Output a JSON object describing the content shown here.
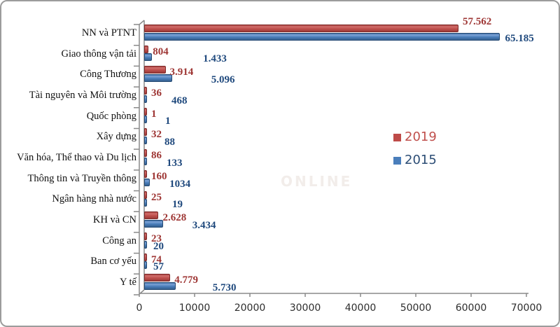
{
  "watermark": "ONLINE",
  "chart_data": {
    "type": "bar",
    "orientation": "horizontal",
    "title": "",
    "xlabel": "",
    "ylabel": "",
    "categories": [
      "NN và PTNT",
      "Giao thông vận tải",
      "Công Thương",
      "Tài nguyên và Môi trường",
      "Quốc phòng",
      "Xây dựng",
      "Văn hóa, Thể thao và Du lịch",
      "Thông tin và Truyền thông",
      "Ngân hàng nhà nước",
      "KH và CN",
      "Công an",
      "Ban cơ yếu",
      "Y tế"
    ],
    "series": [
      {
        "name": "2019",
        "color": "#be4b48",
        "label_color": "#9e3634",
        "legend_text_color": "#c0504d",
        "values": [
          57562,
          804,
          3914,
          36,
          1,
          32,
          86,
          160,
          25,
          2628,
          23,
          74,
          4779
        ],
        "labels": [
          "57.562",
          "804",
          "3.914",
          "36",
          "1",
          "32",
          "86",
          "160",
          "25",
          "2.628",
          "23",
          "74",
          "4.779"
        ]
      },
      {
        "name": "2015",
        "color": "#4a7ebb",
        "label_color": "#1f497d",
        "legend_text_color": "#2c4d75",
        "values": [
          65185,
          1433,
          5096,
          468,
          1,
          88,
          133,
          1034,
          19,
          3434,
          20,
          57,
          5730
        ],
        "labels": [
          "65.185",
          "1.433",
          "5.096",
          "468",
          "1",
          "88",
          "133",
          "1034",
          "19",
          "3.434",
          "20",
          "57",
          "5.730"
        ]
      }
    ],
    "xlim": [
      0,
      70000
    ],
    "x_ticks": [
      0,
      10000,
      20000,
      30000,
      40000,
      50000,
      60000,
      70000
    ],
    "x_tick_labels": [
      "0",
      "10000",
      "20000",
      "30000",
      "40000",
      "50000",
      "60000",
      "70000"
    ],
    "grid": false,
    "legend_position": "center-right",
    "bar_order_per_category": [
      "2019",
      "2015"
    ]
  }
}
